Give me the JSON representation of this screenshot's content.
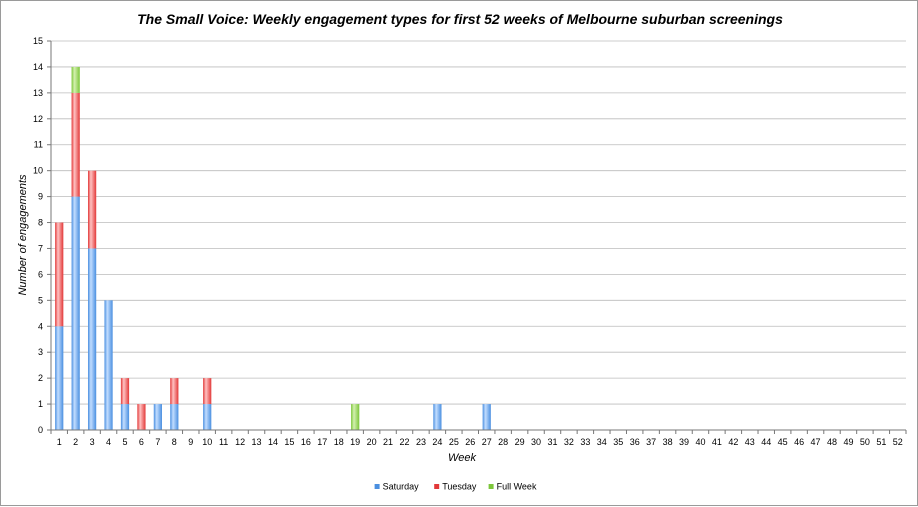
{
  "chart_data": {
    "type": "bar",
    "stacked": true,
    "title": "The Small Voice: Weekly engagement types for first 52 weeks of Melbourne suburban screenings",
    "xlabel": "Week",
    "ylabel": "Number of engagements",
    "ylim": [
      0,
      15
    ],
    "ystep": 1,
    "grid": true,
    "legend_position": "bottom",
    "categories": [
      "1",
      "2",
      "3",
      "4",
      "5",
      "6",
      "7",
      "8",
      "9",
      "10",
      "11",
      "12",
      "13",
      "14",
      "15",
      "16",
      "17",
      "18",
      "19",
      "20",
      "21",
      "22",
      "23",
      "24",
      "25",
      "26",
      "27",
      "28",
      "29",
      "30",
      "31",
      "32",
      "33",
      "34",
      "35",
      "36",
      "37",
      "38",
      "39",
      "40",
      "41",
      "42",
      "43",
      "44",
      "45",
      "46",
      "47",
      "48",
      "49",
      "50",
      "51",
      "52"
    ],
    "series": [
      {
        "name": "Saturday",
        "color": "#4a8fe0",
        "color_light": "#c2ddff",
        "values": [
          4,
          9,
          7,
          5,
          1,
          0,
          1,
          1,
          0,
          1,
          0,
          0,
          0,
          0,
          0,
          0,
          0,
          0,
          0,
          0,
          0,
          0,
          0,
          1,
          0,
          0,
          1,
          0,
          0,
          0,
          0,
          0,
          0,
          0,
          0,
          0,
          0,
          0,
          0,
          0,
          0,
          0,
          0,
          0,
          0,
          0,
          0,
          0,
          0,
          0,
          0,
          0
        ]
      },
      {
        "name": "Tuesday",
        "color": "#e23838",
        "color_light": "#ffc2c2",
        "values": [
          4,
          4,
          3,
          0,
          1,
          1,
          0,
          1,
          0,
          1,
          0,
          0,
          0,
          0,
          0,
          0,
          0,
          0,
          0,
          0,
          0,
          0,
          0,
          0,
          0,
          0,
          0,
          0,
          0,
          0,
          0,
          0,
          0,
          0,
          0,
          0,
          0,
          0,
          0,
          0,
          0,
          0,
          0,
          0,
          0,
          0,
          0,
          0,
          0,
          0,
          0,
          0
        ]
      },
      {
        "name": "Full Week",
        "color": "#7cc63a",
        "color_light": "#d4f0b0",
        "values": [
          0,
          1,
          0,
          0,
          0,
          0,
          0,
          0,
          0,
          0,
          0,
          0,
          0,
          0,
          0,
          0,
          0,
          0,
          1,
          0,
          0,
          0,
          0,
          0,
          0,
          0,
          0,
          0,
          0,
          0,
          0,
          0,
          0,
          0,
          0,
          0,
          0,
          0,
          0,
          0,
          0,
          0,
          0,
          0,
          0,
          0,
          0,
          0,
          0,
          0,
          0,
          0
        ]
      }
    ]
  }
}
